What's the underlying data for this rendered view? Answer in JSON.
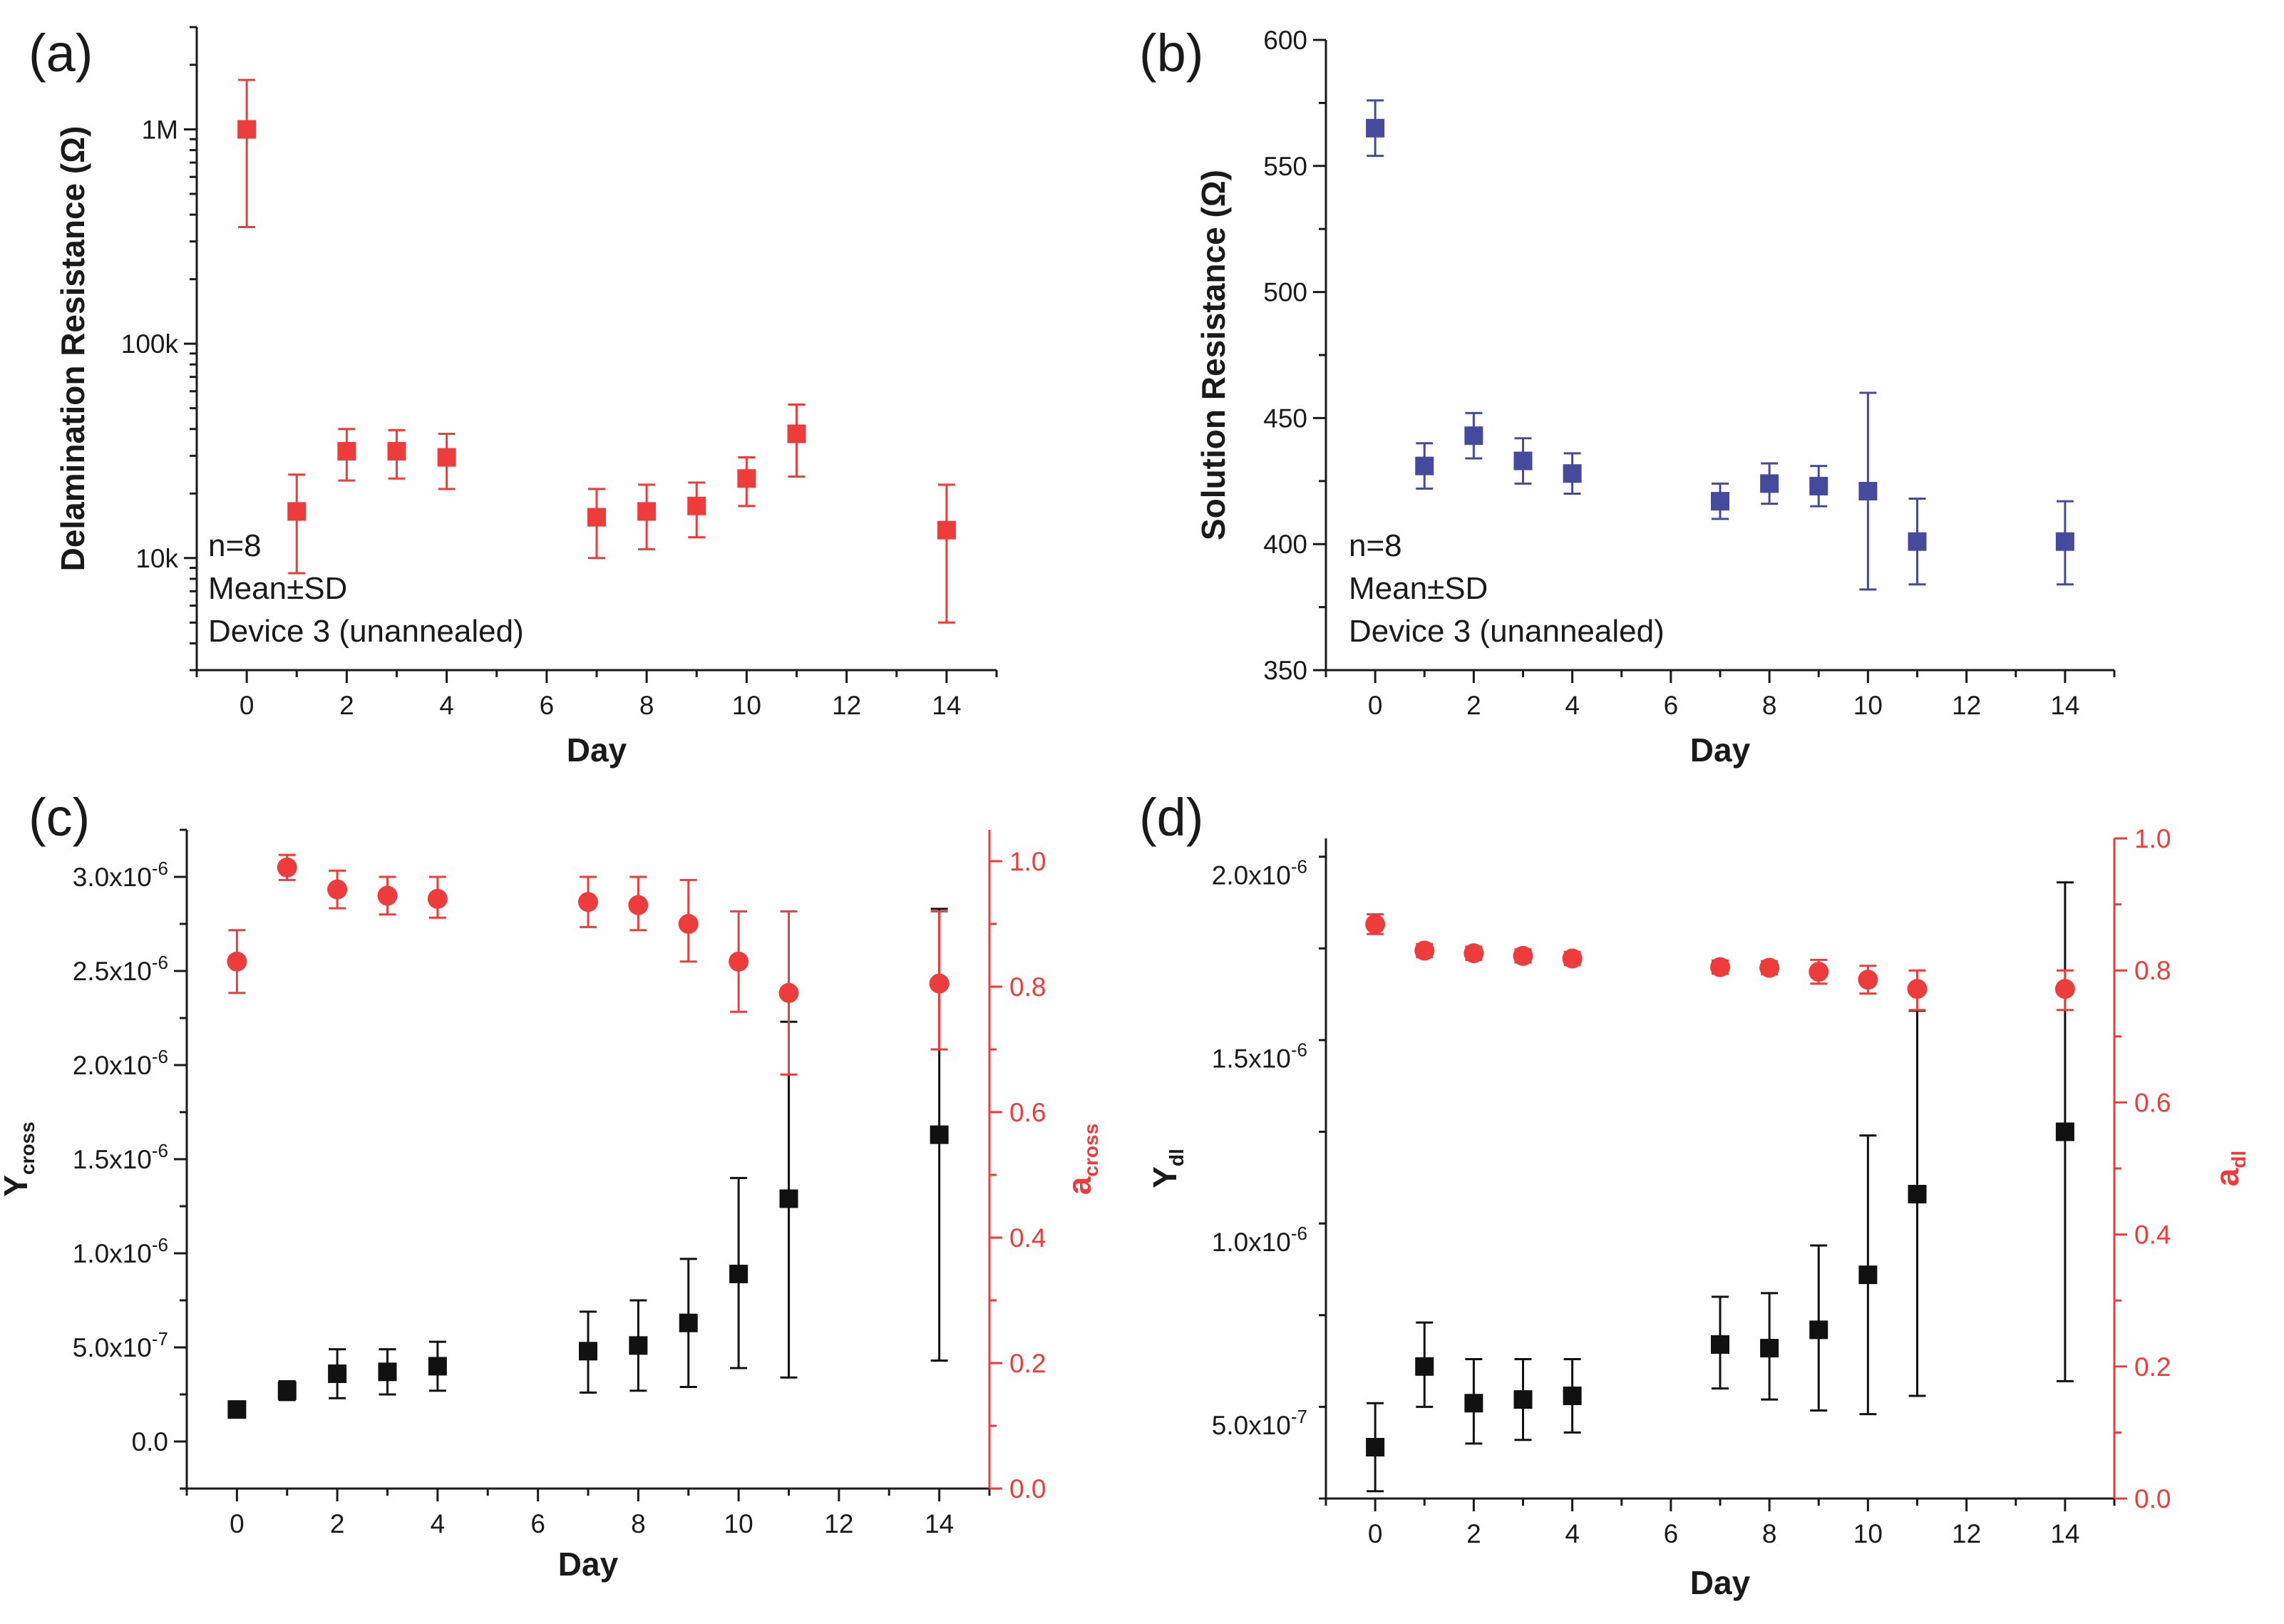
{
  "figure": {
    "panel_labels": [
      "(a)",
      "(b)",
      "(c)",
      "(d)"
    ]
  },
  "colors": {
    "red": "#ee3b3b",
    "blue": "#454a9c",
    "black": "#111111",
    "axis": "#1a1a1a"
  },
  "chart_data": [
    {
      "panel": "(a)",
      "type": "scatter",
      "xlabel": "Day",
      "ylabel": "Delamination Resistance (Ω)",
      "yscale": "log",
      "xlim": [
        -1,
        15
      ],
      "ylim": [
        3000,
        3000000
      ],
      "xticks": [
        "0",
        "2",
        "4",
        "6",
        "8",
        "10",
        "12",
        "14"
      ],
      "yticks": [
        {
          "v": 10000,
          "label": "10k"
        },
        {
          "v": 100000,
          "label": "100k"
        },
        {
          "v": 1000000,
          "label": "1M"
        }
      ],
      "annotations": [
        "n=8",
        "Mean±SD",
        "Device 3 (unannealed)"
      ],
      "series": [
        {
          "name": "Delamination Resistance",
          "axis": "left",
          "color": "#ee3b3b",
          "marker": "square",
          "points": [
            {
              "x": 0,
              "y": 1000000,
              "lo": 350000,
              "hi": 1700000
            },
            {
              "x": 1,
              "y": 16500,
              "lo": 8500,
              "hi": 24500
            },
            {
              "x": 2,
              "y": 31500,
              "lo": 23000,
              "hi": 40000
            },
            {
              "x": 3,
              "y": 31500,
              "lo": 23500,
              "hi": 39500
            },
            {
              "x": 4,
              "y": 29500,
              "lo": 21000,
              "hi": 38000
            },
            {
              "x": 7,
              "y": 15500,
              "lo": 10000,
              "hi": 21000
            },
            {
              "x": 8,
              "y": 16500,
              "lo": 11000,
              "hi": 22000
            },
            {
              "x": 9,
              "y": 17500,
              "lo": 12500,
              "hi": 22500
            },
            {
              "x": 10,
              "y": 23500,
              "lo": 17500,
              "hi": 29500
            },
            {
              "x": 11,
              "y": 38000,
              "lo": 24000,
              "hi": 52000
            },
            {
              "x": 14,
              "y": 13500,
              "lo": 5000,
              "hi": 22000
            }
          ]
        }
      ]
    },
    {
      "panel": "(b)",
      "type": "scatter",
      "xlabel": "Day",
      "ylabel": "Solution Resistance (Ω)",
      "yscale": "linear",
      "xlim": [
        -1,
        15
      ],
      "ylim": [
        350,
        600
      ],
      "xticks": [
        "0",
        "2",
        "4",
        "6",
        "8",
        "10",
        "12",
        "14"
      ],
      "yticks": [
        {
          "v": 350,
          "label": "350"
        },
        {
          "v": 400,
          "label": "400"
        },
        {
          "v": 450,
          "label": "450"
        },
        {
          "v": 500,
          "label": "500"
        },
        {
          "v": 550,
          "label": "550"
        },
        {
          "v": 600,
          "label": "600"
        }
      ],
      "annotations": [
        "n=8",
        "Mean±SD",
        "Device 3 (unannealed)"
      ],
      "series": [
        {
          "name": "Solution Resistance",
          "axis": "left",
          "color": "#454a9c",
          "marker": "square",
          "points": [
            {
              "x": 0,
              "y": 565,
              "lo": 554,
              "hi": 576
            },
            {
              "x": 1,
              "y": 431,
              "lo": 422,
              "hi": 440
            },
            {
              "x": 2,
              "y": 443,
              "lo": 434,
              "hi": 452
            },
            {
              "x": 3,
              "y": 433,
              "lo": 424,
              "hi": 442
            },
            {
              "x": 4,
              "y": 428,
              "lo": 420,
              "hi": 436
            },
            {
              "x": 7,
              "y": 417,
              "lo": 410,
              "hi": 424
            },
            {
              "x": 8,
              "y": 424,
              "lo": 416,
              "hi": 432
            },
            {
              "x": 9,
              "y": 423,
              "lo": 415,
              "hi": 431
            },
            {
              "x": 10,
              "y": 421,
              "lo": 382,
              "hi": 460
            },
            {
              "x": 11,
              "y": 401,
              "lo": 384,
              "hi": 418
            },
            {
              "x": 14,
              "y": 401,
              "lo": 384,
              "hi": 417
            }
          ]
        }
      ]
    },
    {
      "panel": "(c)",
      "type": "scatter",
      "xlabel": "Day",
      "ylabel": "Y",
      "ylabel_sub": "cross",
      "y2label": "a",
      "y2label_sub": "cross",
      "yscale": "linear",
      "xlim": [
        -1,
        15
      ],
      "ylim": [
        -0.25,
        3.25
      ],
      "y2lim": [
        0,
        1.05
      ],
      "xticks": [
        "0",
        "2",
        "4",
        "6",
        "8",
        "10",
        "12",
        "14"
      ],
      "yticks": [
        {
          "v": 0,
          "label": "0.0"
        },
        {
          "v": 0.5,
          "label": "5.0x10",
          "exp": "-7"
        },
        {
          "v": 1.0,
          "label": "1.0x10",
          "exp": "-6"
        },
        {
          "v": 1.5,
          "label": "1.5x10",
          "exp": "-6"
        },
        {
          "v": 2.0,
          "label": "2.0x10",
          "exp": "-6"
        },
        {
          "v": 2.5,
          "label": "2.5x10",
          "exp": "-6"
        },
        {
          "v": 3.0,
          "label": "3.0x10",
          "exp": "-6"
        }
      ],
      "y2ticks": [
        "0.0",
        "0.2",
        "0.4",
        "0.6",
        "0.8",
        "1.0"
      ],
      "series": [
        {
          "name": "Y_cross (x10^-6)",
          "axis": "left",
          "color": "#111111",
          "marker": "square",
          "points": [
            {
              "x": 0,
              "y": 0.17,
              "lo": 0.14,
              "hi": 0.2
            },
            {
              "x": 1,
              "y": 0.27,
              "lo": 0.22,
              "hi": 0.32
            },
            {
              "x": 2,
              "y": 0.36,
              "lo": 0.23,
              "hi": 0.49
            },
            {
              "x": 3,
              "y": 0.37,
              "lo": 0.25,
              "hi": 0.49
            },
            {
              "x": 4,
              "y": 0.4,
              "lo": 0.27,
              "hi": 0.53
            },
            {
              "x": 7,
              "y": 0.48,
              "lo": 0.26,
              "hi": 0.69
            },
            {
              "x": 8,
              "y": 0.51,
              "lo": 0.27,
              "hi": 0.75
            },
            {
              "x": 9,
              "y": 0.63,
              "lo": 0.29,
              "hi": 0.97
            },
            {
              "x": 10,
              "y": 0.89,
              "lo": 0.39,
              "hi": 1.4
            },
            {
              "x": 11,
              "y": 1.29,
              "lo": 0.34,
              "hi": 2.23
            },
            {
              "x": 14,
              "y": 1.63,
              "lo": 0.43,
              "hi": 2.83
            }
          ]
        },
        {
          "name": "a_cross",
          "axis": "right",
          "color": "#ee3b3b",
          "marker": "circle",
          "points": [
            {
              "x": 0,
              "y": 0.84,
              "lo": 0.79,
              "hi": 0.89
            },
            {
              "x": 1,
              "y": 0.99,
              "lo": 0.97,
              "hi": 1.01
            },
            {
              "x": 2,
              "y": 0.955,
              "lo": 0.925,
              "hi": 0.985
            },
            {
              "x": 3,
              "y": 0.945,
              "lo": 0.915,
              "hi": 0.975
            },
            {
              "x": 4,
              "y": 0.94,
              "lo": 0.91,
              "hi": 0.975
            },
            {
              "x": 7,
              "y": 0.935,
              "lo": 0.895,
              "hi": 0.975
            },
            {
              "x": 8,
              "y": 0.93,
              "lo": 0.89,
              "hi": 0.975
            },
            {
              "x": 9,
              "y": 0.9,
              "lo": 0.84,
              "hi": 0.97
            },
            {
              "x": 10,
              "y": 0.84,
              "lo": 0.76,
              "hi": 0.92
            },
            {
              "x": 11,
              "y": 0.79,
              "lo": 0.66,
              "hi": 0.92
            },
            {
              "x": 14,
              "y": 0.805,
              "lo": 0.7,
              "hi": 0.92
            }
          ]
        }
      ]
    },
    {
      "panel": "(d)",
      "type": "scatter",
      "xlabel": "Day",
      "ylabel": "Y",
      "ylabel_sub": "dl",
      "y2label": "a",
      "y2label_sub": "dl",
      "yscale": "linear",
      "xlim": [
        -1,
        15
      ],
      "ylim": [
        0.3,
        2.1
      ],
      "y2lim": [
        0,
        1.0
      ],
      "xticks": [
        "0",
        "2",
        "4",
        "6",
        "8",
        "10",
        "12",
        "14"
      ],
      "yticks": [
        {
          "v": 0.5,
          "label": "5.0x10",
          "exp": "-7"
        },
        {
          "v": 1.0,
          "label": "1.0x10",
          "exp": "-6"
        },
        {
          "v": 1.5,
          "label": "1.5x10",
          "exp": "-6"
        },
        {
          "v": 2.0,
          "label": "2.0x10",
          "exp": "-6"
        }
      ],
      "y2ticks": [
        "0.0",
        "0.2",
        "0.4",
        "0.6",
        "0.8",
        "1.0"
      ],
      "series": [
        {
          "name": "Y_dl (x10^-6)",
          "axis": "left",
          "color": "#111111",
          "marker": "square",
          "points": [
            {
              "x": 0,
              "y": 0.44,
              "lo": 0.32,
              "hi": 0.56
            },
            {
              "x": 1,
              "y": 0.66,
              "lo": 0.55,
              "hi": 0.78
            },
            {
              "x": 2,
              "y": 0.56,
              "lo": 0.45,
              "hi": 0.68
            },
            {
              "x": 3,
              "y": 0.57,
              "lo": 0.46,
              "hi": 0.68
            },
            {
              "x": 4,
              "y": 0.58,
              "lo": 0.48,
              "hi": 0.68
            },
            {
              "x": 7,
              "y": 0.72,
              "lo": 0.6,
              "hi": 0.85
            },
            {
              "x": 8,
              "y": 0.71,
              "lo": 0.57,
              "hi": 0.86
            },
            {
              "x": 9,
              "y": 0.76,
              "lo": 0.54,
              "hi": 0.99
            },
            {
              "x": 10,
              "y": 0.91,
              "lo": 0.53,
              "hi": 1.29
            },
            {
              "x": 11,
              "y": 1.13,
              "lo": 0.58,
              "hi": 1.63
            },
            {
              "x": 14,
              "y": 1.3,
              "lo": 0.62,
              "hi": 1.98
            }
          ]
        },
        {
          "name": "a_dl",
          "axis": "right",
          "color": "#ee3b3b",
          "marker": "circle",
          "points": [
            {
              "x": 0,
              "y": 0.87,
              "lo": 0.855,
              "hi": 0.885
            },
            {
              "x": 1,
              "y": 0.83,
              "lo": 0.82,
              "hi": 0.84
            },
            {
              "x": 2,
              "y": 0.826,
              "lo": 0.816,
              "hi": 0.836
            },
            {
              "x": 3,
              "y": 0.822,
              "lo": 0.812,
              "hi": 0.832
            },
            {
              "x": 4,
              "y": 0.818,
              "lo": 0.808,
              "hi": 0.828
            },
            {
              "x": 7,
              "y": 0.805,
              "lo": 0.795,
              "hi": 0.815
            },
            {
              "x": 8,
              "y": 0.804,
              "lo": 0.794,
              "hi": 0.814
            },
            {
              "x": 9,
              "y": 0.798,
              "lo": 0.78,
              "hi": 0.816
            },
            {
              "x": 10,
              "y": 0.786,
              "lo": 0.765,
              "hi": 0.807
            },
            {
              "x": 11,
              "y": 0.772,
              "lo": 0.74,
              "hi": 0.8
            },
            {
              "x": 14,
              "y": 0.772,
              "lo": 0.74,
              "hi": 0.8
            }
          ]
        }
      ]
    }
  ]
}
